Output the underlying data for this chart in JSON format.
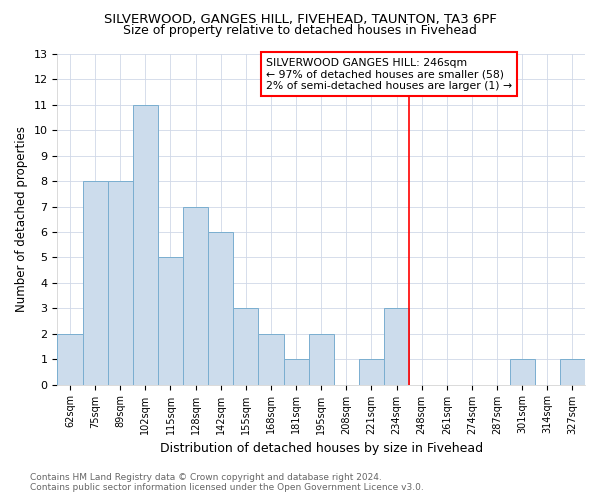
{
  "title": "SILVERWOOD, GANGES HILL, FIVEHEAD, TAUNTON, TA3 6PF",
  "subtitle": "Size of property relative to detached houses in Fivehead",
  "xlabel": "Distribution of detached houses by size in Fivehead",
  "ylabel": "Number of detached properties",
  "categories": [
    "62sqm",
    "75sqm",
    "89sqm",
    "102sqm",
    "115sqm",
    "128sqm",
    "142sqm",
    "155sqm",
    "168sqm",
    "181sqm",
    "195sqm",
    "208sqm",
    "221sqm",
    "234sqm",
    "248sqm",
    "261sqm",
    "274sqm",
    "287sqm",
    "301sqm",
    "314sqm",
    "327sqm"
  ],
  "values": [
    2,
    8,
    8,
    11,
    5,
    7,
    6,
    3,
    2,
    1,
    2,
    0,
    1,
    3,
    0,
    0,
    0,
    0,
    1,
    0,
    1
  ],
  "bar_color": "#ccdcec",
  "bar_edge_color": "#7aaed0",
  "ylim": [
    0,
    13
  ],
  "yticks": [
    0,
    1,
    2,
    3,
    4,
    5,
    6,
    7,
    8,
    9,
    10,
    11,
    12,
    13
  ],
  "red_line_x": 13.5,
  "annotation_text": "SILVERWOOD GANGES HILL: 246sqm\n← 97% of detached houses are smaller (58)\n2% of semi-detached houses are larger (1) →",
  "footnote": "Contains HM Land Registry data © Crown copyright and database right 2024.\nContains public sector information licensed under the Open Government Licence v3.0.",
  "background_color": "#ffffff",
  "grid_color": "#d0d8e8"
}
